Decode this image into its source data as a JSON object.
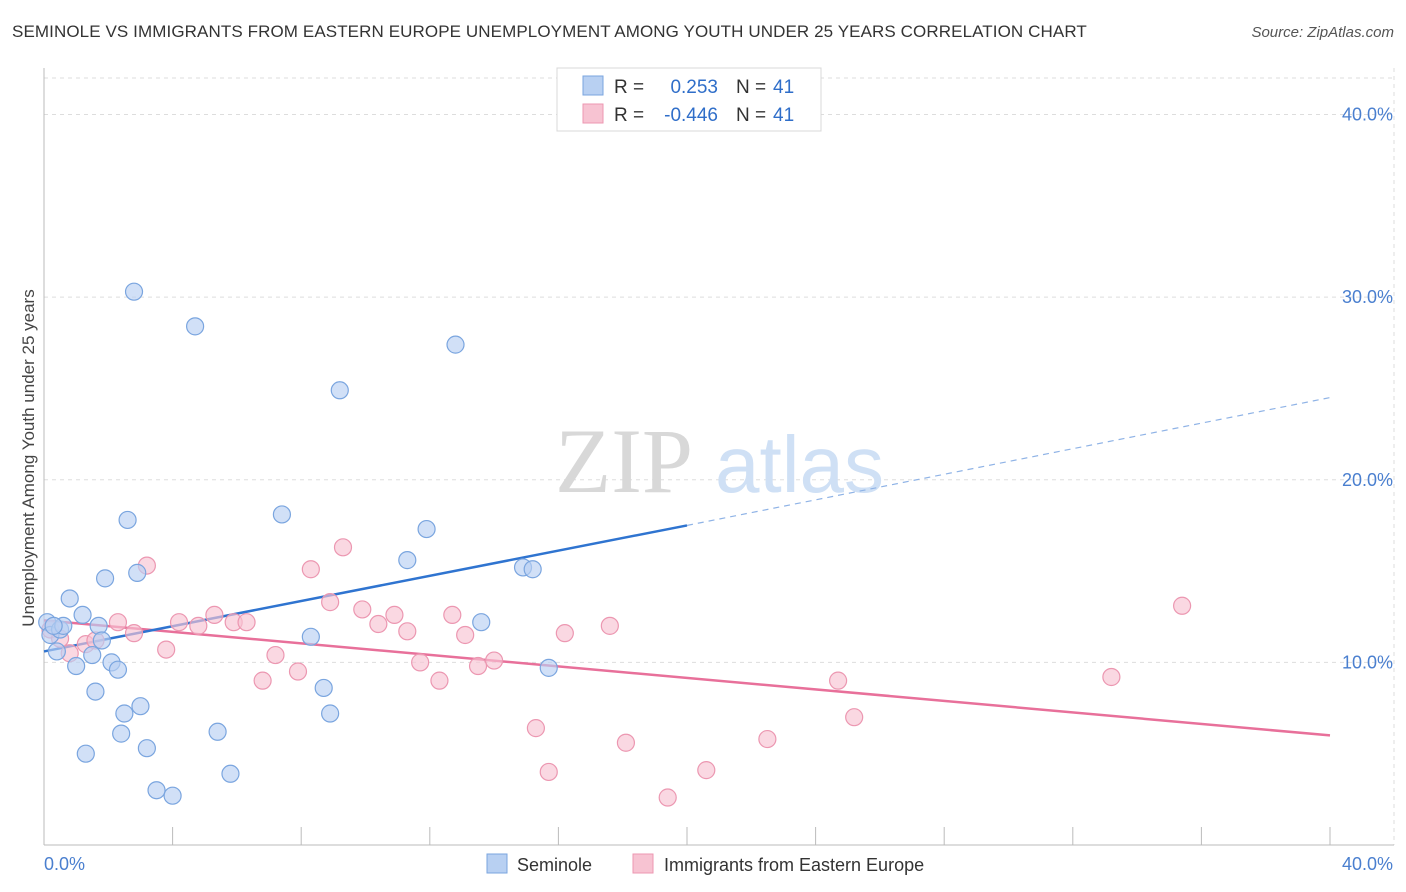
{
  "title": "SEMINOLE VS IMMIGRANTS FROM EASTERN EUROPE UNEMPLOYMENT AMONG YOUTH UNDER 25 YEARS CORRELATION CHART",
  "source": "Source: ZipAtlas.com",
  "watermark": {
    "zip": "ZIP",
    "atlas": "atlas"
  },
  "legend_top": [
    {
      "r_label": "R =",
      "r_value": "0.253",
      "n_label": "N =",
      "n_value": "41"
    },
    {
      "r_label": "R =",
      "r_value": "-0.446",
      "n_label": "N =",
      "n_value": "41"
    }
  ],
  "legend_bottom": [
    "Seminole",
    "Immigrants from Eastern Europe"
  ],
  "colors": {
    "seminole_fill": "#b8d0f2",
    "seminole_stroke": "#7aa5df",
    "seminole_line": "#2f74d0",
    "eastern_fill": "#f7c3d2",
    "eastern_stroke": "#ec97b1",
    "eastern_line": "#e8709a",
    "tick_text": "#4a7fcf",
    "grid": "#dddddd"
  },
  "chart_data": {
    "type": "scatter",
    "title": "SEMINOLE VS IMMIGRANTS FROM EASTERN EUROPE UNEMPLOYMENT AMONG YOUTH UNDER 25 YEARS CORRELATION CHART",
    "xlabel": "",
    "ylabel": "Unemployment Among Youth under 25 years",
    "xlim": [
      0,
      40
    ],
    "ylim": [
      0,
      42
    ],
    "x_tick_labels": [
      "0.0%",
      "40.0%"
    ],
    "y_ticks": [
      10,
      20,
      30,
      40
    ],
    "y_tick_labels": [
      "10.0%",
      "20.0%",
      "30.0%",
      "40.0%"
    ],
    "series": [
      {
        "name": "Seminole",
        "r": 0.253,
        "n": 41,
        "points": [
          [
            0.1,
            12.2
          ],
          [
            0.2,
            11.5
          ],
          [
            0.4,
            10.6
          ],
          [
            0.5,
            11.8
          ],
          [
            0.6,
            12.0
          ],
          [
            0.8,
            13.5
          ],
          [
            1.0,
            9.8
          ],
          [
            1.2,
            12.6
          ],
          [
            1.3,
            5.0
          ],
          [
            1.5,
            10.4
          ],
          [
            1.6,
            8.4
          ],
          [
            1.7,
            12.0
          ],
          [
            1.8,
            11.2
          ],
          [
            1.9,
            14.6
          ],
          [
            2.1,
            10.0
          ],
          [
            2.3,
            9.6
          ],
          [
            2.4,
            6.1
          ],
          [
            2.5,
            7.2
          ],
          [
            2.6,
            17.8
          ],
          [
            2.8,
            30.3
          ],
          [
            2.9,
            14.9
          ],
          [
            3.0,
            7.6
          ],
          [
            3.2,
            5.3
          ],
          [
            3.5,
            3.0
          ],
          [
            4.0,
            2.7
          ],
          [
            4.7,
            28.4
          ],
          [
            5.4,
            6.2
          ],
          [
            5.8,
            3.9
          ],
          [
            7.4,
            18.1
          ],
          [
            8.3,
            11.4
          ],
          [
            8.7,
            8.6
          ],
          [
            8.9,
            7.2
          ],
          [
            9.2,
            24.9
          ],
          [
            11.3,
            15.6
          ],
          [
            11.9,
            17.3
          ],
          [
            12.8,
            27.4
          ],
          [
            13.6,
            12.2
          ],
          [
            14.9,
            15.2
          ],
          [
            15.2,
            15.1
          ],
          [
            15.7,
            9.7
          ],
          [
            0.3,
            12.0
          ]
        ],
        "trend": {
          "x1": 0.0,
          "y1": 10.6,
          "x2": 20.0,
          "y2": 17.5,
          "dash_to_x": 40.0,
          "dash_to_y": 24.5
        }
      },
      {
        "name": "Immigrants from Eastern Europe",
        "r": -0.446,
        "n": 41,
        "points": [
          [
            0.2,
            11.8
          ],
          [
            0.5,
            11.3
          ],
          [
            0.8,
            10.5
          ],
          [
            1.3,
            11.0
          ],
          [
            1.6,
            11.2
          ],
          [
            2.3,
            12.2
          ],
          [
            2.8,
            11.6
          ],
          [
            3.2,
            15.3
          ],
          [
            3.8,
            10.7
          ],
          [
            4.2,
            12.2
          ],
          [
            4.8,
            12.0
          ],
          [
            5.3,
            12.6
          ],
          [
            5.9,
            12.2
          ],
          [
            6.3,
            12.2
          ],
          [
            6.8,
            9.0
          ],
          [
            7.2,
            10.4
          ],
          [
            7.9,
            9.5
          ],
          [
            8.3,
            15.1
          ],
          [
            8.9,
            13.3
          ],
          [
            9.3,
            16.3
          ],
          [
            9.9,
            12.9
          ],
          [
            10.4,
            12.1
          ],
          [
            10.9,
            12.6
          ],
          [
            11.3,
            11.7
          ],
          [
            11.7,
            10.0
          ],
          [
            12.3,
            9.0
          ],
          [
            12.7,
            12.6
          ],
          [
            13.1,
            11.5
          ],
          [
            13.5,
            9.8
          ],
          [
            14.0,
            10.1
          ],
          [
            15.3,
            6.4
          ],
          [
            15.7,
            4.0
          ],
          [
            16.2,
            11.6
          ],
          [
            17.6,
            12.0
          ],
          [
            18.1,
            5.6
          ],
          [
            19.4,
            2.6
          ],
          [
            20.6,
            4.1
          ],
          [
            22.5,
            5.8
          ],
          [
            24.7,
            9.0
          ],
          [
            25.2,
            7.0
          ],
          [
            33.2,
            9.2
          ]
        ],
        "extra_point": [
          35.4,
          13.1
        ],
        "trend": {
          "x1": 0.0,
          "y1": 12.3,
          "x2": 40.0,
          "y2": 6.0
        }
      }
    ]
  }
}
